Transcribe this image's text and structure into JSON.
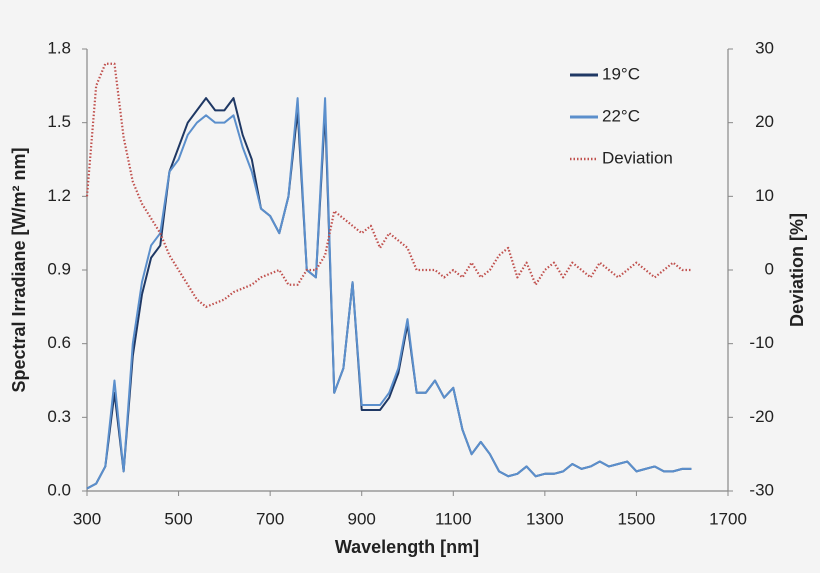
{
  "chart_data": {
    "type": "line",
    "x_label": "Wavelength [nm]",
    "y_label": "Spectral Irradiane [W/m² nm]",
    "y2_label": "Deviation [%]",
    "legend": "top-right",
    "x": [
      300,
      320,
      340,
      360,
      380,
      400,
      420,
      440,
      460,
      480,
      500,
      520,
      540,
      560,
      580,
      600,
      620,
      640,
      660,
      680,
      700,
      720,
      740,
      760,
      780,
      800,
      820,
      840,
      860,
      880,
      900,
      920,
      940,
      960,
      980,
      1000,
      1020,
      1040,
      1060,
      1080,
      1100,
      1120,
      1140,
      1160,
      1180,
      1200,
      1220,
      1240,
      1260,
      1280,
      1300,
      1320,
      1340,
      1360,
      1380,
      1400,
      1420,
      1440,
      1460,
      1480,
      1500,
      1520,
      1540,
      1560,
      1580,
      1600,
      1620
    ],
    "series": [
      {
        "name": "19°C",
        "color": "#1f3864",
        "style": "solid",
        "values": [
          0.01,
          0.03,
          0.1,
          0.4,
          0.08,
          0.55,
          0.8,
          0.95,
          1.0,
          1.3,
          1.4,
          1.5,
          1.55,
          1.6,
          1.55,
          1.55,
          1.6,
          1.45,
          1.35,
          1.15,
          1.12,
          1.05,
          1.2,
          1.55,
          0.9,
          0.87,
          1.55,
          0.4,
          0.5,
          0.85,
          0.33,
          0.33,
          0.33,
          0.38,
          0.48,
          0.68,
          0.4,
          0.4,
          0.45,
          0.38,
          0.42,
          0.25,
          0.15,
          0.2,
          0.15,
          0.08,
          0.06,
          0.07,
          0.1,
          0.06,
          0.07,
          0.07,
          0.08,
          0.11,
          0.09,
          0.1,
          0.12,
          0.1,
          0.11,
          0.12,
          0.08,
          0.09,
          0.1,
          0.08,
          0.08,
          0.09,
          0.09
        ]
      },
      {
        "name": "22°C",
        "color": "#5b8fcc",
        "style": "solid",
        "values": [
          0.01,
          0.03,
          0.1,
          0.45,
          0.08,
          0.6,
          0.85,
          1.0,
          1.05,
          1.3,
          1.35,
          1.45,
          1.5,
          1.53,
          1.5,
          1.5,
          1.53,
          1.4,
          1.3,
          1.15,
          1.12,
          1.05,
          1.2,
          1.6,
          0.9,
          0.87,
          1.6,
          0.4,
          0.5,
          0.85,
          0.35,
          0.35,
          0.35,
          0.4,
          0.5,
          0.7,
          0.4,
          0.4,
          0.45,
          0.38,
          0.42,
          0.25,
          0.15,
          0.2,
          0.15,
          0.08,
          0.06,
          0.07,
          0.1,
          0.06,
          0.07,
          0.07,
          0.08,
          0.11,
          0.09,
          0.1,
          0.12,
          0.1,
          0.11,
          0.12,
          0.08,
          0.09,
          0.1,
          0.08,
          0.08,
          0.09,
          0.09
        ]
      },
      {
        "name": "Deviation",
        "color": "#c0504d",
        "style": "dotted",
        "axis": "y2",
        "values": [
          10,
          25,
          28,
          28,
          18,
          12,
          9,
          7,
          5,
          2,
          0,
          -2,
          -4,
          -5,
          -4.5,
          -4,
          -3,
          -2.5,
          -2,
          -1,
          -0.5,
          0,
          -2,
          -2,
          0,
          0,
          2,
          8,
          7,
          6,
          5,
          6,
          3,
          5,
          4,
          3,
          0,
          0,
          0,
          -1,
          0,
          -1,
          1,
          -1,
          0,
          2,
          3,
          -1,
          1,
          -2,
          0,
          1,
          -1,
          1,
          0,
          -1,
          1,
          0,
          -1,
          0,
          1,
          0,
          -1,
          0,
          1,
          0,
          0
        ]
      }
    ],
    "xlim": [
      300,
      1700
    ],
    "xticks": [
      300,
      500,
      700,
      900,
      1100,
      1300,
      1500,
      1700
    ],
    "ylim": [
      0,
      1.8
    ],
    "yticks": [
      {
        "value": 0,
        "label": "0.0"
      },
      0.3,
      0.6,
      0.9,
      1.2,
      1.5,
      1.8
    ],
    "y2lim": [
      -30,
      30
    ],
    "y2ticks": [
      -30,
      -20,
      -10,
      0,
      10,
      20,
      30
    ]
  }
}
